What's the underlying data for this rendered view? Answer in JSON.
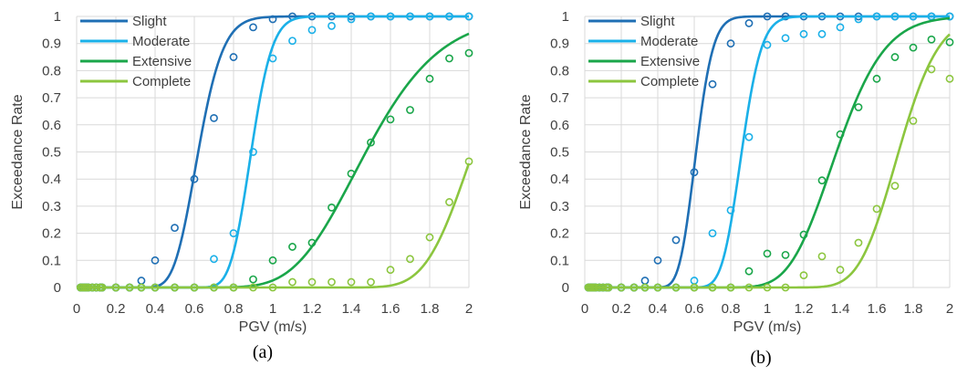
{
  "chart_data": [
    {
      "type": "line",
      "panel_label": "(a)",
      "xlabel": "PGV (m/s)",
      "ylabel": "Exceedance Rate",
      "xlim": [
        0,
        2
      ],
      "ylim": [
        0,
        1
      ],
      "x_ticks": [
        "0",
        "0.2",
        "0.4",
        "0.6",
        "0.8",
        "1",
        "1.2",
        "1.4",
        "1.6",
        "1.8",
        "2"
      ],
      "y_ticks": [
        "0",
        "0.1",
        "0.2",
        "0.3",
        "0.4",
        "0.5",
        "0.6",
        "0.7",
        "0.8",
        "0.9",
        "1"
      ],
      "grid": true,
      "legend_position": "top-left",
      "series": [
        {
          "name": "Slight",
          "color": "#1f6fb4",
          "curve": {
            "median": 0.62,
            "beta": 0.16
          },
          "points": [
            [
              0.02,
              0
            ],
            [
              0.03,
              0
            ],
            [
              0.04,
              0
            ],
            [
              0.05,
              0
            ],
            [
              0.06,
              0
            ],
            [
              0.08,
              0
            ],
            [
              0.1,
              0
            ],
            [
              0.12,
              0
            ],
            [
              0.13,
              0
            ],
            [
              0.2,
              0
            ],
            [
              0.27,
              0
            ],
            [
              0.33,
              0.025
            ],
            [
              0.4,
              0.1
            ],
            [
              0.5,
              0.22
            ],
            [
              0.6,
              0.4
            ],
            [
              0.7,
              0.625
            ],
            [
              0.8,
              0.85
            ],
            [
              0.9,
              0.96
            ],
            [
              1.0,
              0.99
            ],
            [
              1.1,
              1.0
            ],
            [
              1.2,
              1.0
            ],
            [
              1.3,
              1.0
            ],
            [
              1.4,
              1.0
            ],
            [
              1.5,
              1.0
            ],
            [
              1.6,
              1.0
            ],
            [
              1.7,
              1.0
            ],
            [
              1.8,
              1.0
            ],
            [
              1.9,
              1.0
            ],
            [
              2.0,
              1.0
            ]
          ]
        },
        {
          "name": "Moderate",
          "color": "#1ab0e8",
          "curve": {
            "median": 0.89,
            "beta": 0.095
          },
          "points": [
            [
              0.02,
              0
            ],
            [
              0.03,
              0
            ],
            [
              0.04,
              0
            ],
            [
              0.05,
              0
            ],
            [
              0.06,
              0
            ],
            [
              0.08,
              0
            ],
            [
              0.1,
              0
            ],
            [
              0.12,
              0
            ],
            [
              0.13,
              0
            ],
            [
              0.2,
              0
            ],
            [
              0.27,
              0
            ],
            [
              0.33,
              0
            ],
            [
              0.4,
              0
            ],
            [
              0.5,
              0
            ],
            [
              0.6,
              0
            ],
            [
              0.7,
              0.105
            ],
            [
              0.8,
              0.2
            ],
            [
              0.9,
              0.5
            ],
            [
              1.0,
              0.845
            ],
            [
              1.1,
              0.91
            ],
            [
              1.2,
              0.95
            ],
            [
              1.3,
              0.965
            ],
            [
              1.4,
              0.99
            ],
            [
              1.5,
              1.0
            ],
            [
              1.6,
              1.0
            ],
            [
              1.7,
              1.0
            ],
            [
              1.8,
              1.0
            ],
            [
              1.9,
              1.0
            ],
            [
              2.0,
              1.0
            ]
          ]
        },
        {
          "name": "Extensive",
          "color": "#1aa64a",
          "curve": {
            "median": 1.475,
            "beta": 0.2
          },
          "points": [
            [
              0.02,
              0
            ],
            [
              0.03,
              0
            ],
            [
              0.04,
              0
            ],
            [
              0.05,
              0
            ],
            [
              0.06,
              0
            ],
            [
              0.08,
              0
            ],
            [
              0.1,
              0
            ],
            [
              0.12,
              0
            ],
            [
              0.13,
              0
            ],
            [
              0.2,
              0
            ],
            [
              0.27,
              0
            ],
            [
              0.33,
              0
            ],
            [
              0.4,
              0
            ],
            [
              0.5,
              0
            ],
            [
              0.6,
              0
            ],
            [
              0.7,
              0
            ],
            [
              0.8,
              0
            ],
            [
              0.9,
              0.03
            ],
            [
              1.0,
              0.1
            ],
            [
              1.1,
              0.15
            ],
            [
              1.2,
              0.165
            ],
            [
              1.3,
              0.295
            ],
            [
              1.4,
              0.42
            ],
            [
              1.5,
              0.535
            ],
            [
              1.6,
              0.62
            ],
            [
              1.7,
              0.655
            ],
            [
              1.8,
              0.77
            ],
            [
              1.9,
              0.845
            ],
            [
              2.0,
              0.865
            ]
          ]
        },
        {
          "name": "Complete",
          "color": "#8cc63f",
          "curve": {
            "median": 2.02,
            "beta": 0.095
          },
          "points": [
            [
              0.02,
              0
            ],
            [
              0.03,
              0
            ],
            [
              0.04,
              0
            ],
            [
              0.05,
              0
            ],
            [
              0.06,
              0
            ],
            [
              0.08,
              0
            ],
            [
              0.1,
              0
            ],
            [
              0.12,
              0
            ],
            [
              0.13,
              0
            ],
            [
              0.2,
              0
            ],
            [
              0.27,
              0
            ],
            [
              0.33,
              0
            ],
            [
              0.4,
              0
            ],
            [
              0.5,
              0
            ],
            [
              0.6,
              0
            ],
            [
              0.7,
              0
            ],
            [
              0.8,
              0
            ],
            [
              0.9,
              0
            ],
            [
              1.0,
              0
            ],
            [
              1.1,
              0.02
            ],
            [
              1.2,
              0.02
            ],
            [
              1.3,
              0.02
            ],
            [
              1.4,
              0.02
            ],
            [
              1.5,
              0.02
            ],
            [
              1.6,
              0.065
            ],
            [
              1.7,
              0.105
            ],
            [
              1.8,
              0.185
            ],
            [
              1.9,
              0.315
            ],
            [
              2.0,
              0.465
            ]
          ]
        }
      ]
    },
    {
      "type": "line",
      "panel_label": "(b)",
      "xlabel": "PGV (m/s)",
      "ylabel": "Exceedance Rate",
      "xlim": [
        0,
        2
      ],
      "ylim": [
        0,
        1
      ],
      "x_ticks": [
        "0",
        "0.2",
        "0.4",
        "0.6",
        "0.8",
        "1",
        "1.2",
        "1.4",
        "1.6",
        "1.8",
        "2"
      ],
      "y_ticks": [
        "0",
        "0.1",
        "0.2",
        "0.3",
        "0.4",
        "0.5",
        "0.6",
        "0.7",
        "0.8",
        "0.9",
        "1"
      ],
      "grid": true,
      "legend_position": "top-left",
      "series": [
        {
          "name": "Slight",
          "color": "#1f6fb4",
          "curve": {
            "median": 0.61,
            "beta": 0.12
          },
          "points": [
            [
              0.02,
              0
            ],
            [
              0.03,
              0
            ],
            [
              0.04,
              0
            ],
            [
              0.05,
              0
            ],
            [
              0.06,
              0
            ],
            [
              0.08,
              0
            ],
            [
              0.1,
              0
            ],
            [
              0.12,
              0
            ],
            [
              0.13,
              0
            ],
            [
              0.2,
              0
            ],
            [
              0.27,
              0
            ],
            [
              0.33,
              0.025
            ],
            [
              0.4,
              0.1
            ],
            [
              0.5,
              0.175
            ],
            [
              0.6,
              0.425
            ],
            [
              0.7,
              0.75
            ],
            [
              0.8,
              0.9
            ],
            [
              0.9,
              0.975
            ],
            [
              1.0,
              1.0
            ],
            [
              1.1,
              1.0
            ],
            [
              1.2,
              1.0
            ],
            [
              1.3,
              1.0
            ],
            [
              1.4,
              1.0
            ],
            [
              1.5,
              1.0
            ],
            [
              1.6,
              1.0
            ],
            [
              1.7,
              1.0
            ],
            [
              1.8,
              1.0
            ],
            [
              1.9,
              1.0
            ],
            [
              2.0,
              1.0
            ]
          ]
        },
        {
          "name": "Moderate",
          "color": "#1ab0e8",
          "curve": {
            "median": 0.86,
            "beta": 0.1
          },
          "points": [
            [
              0.02,
              0
            ],
            [
              0.03,
              0
            ],
            [
              0.04,
              0
            ],
            [
              0.05,
              0
            ],
            [
              0.06,
              0
            ],
            [
              0.08,
              0
            ],
            [
              0.1,
              0
            ],
            [
              0.12,
              0
            ],
            [
              0.13,
              0
            ],
            [
              0.2,
              0
            ],
            [
              0.27,
              0
            ],
            [
              0.33,
              0
            ],
            [
              0.4,
              0
            ],
            [
              0.5,
              0
            ],
            [
              0.6,
              0.025
            ],
            [
              0.7,
              0.2
            ],
            [
              0.8,
              0.285
            ],
            [
              0.9,
              0.555
            ],
            [
              1.0,
              0.895
            ],
            [
              1.1,
              0.92
            ],
            [
              1.2,
              0.935
            ],
            [
              1.3,
              0.935
            ],
            [
              1.4,
              0.96
            ],
            [
              1.5,
              0.99
            ],
            [
              1.6,
              1.0
            ],
            [
              1.7,
              1.0
            ],
            [
              1.8,
              1.0
            ],
            [
              1.9,
              1.0
            ],
            [
              2.0,
              1.0
            ]
          ]
        },
        {
          "name": "Extensive",
          "color": "#1aa64a",
          "curve": {
            "median": 1.38,
            "beta": 0.15
          },
          "points": [
            [
              0.02,
              0
            ],
            [
              0.03,
              0
            ],
            [
              0.04,
              0
            ],
            [
              0.05,
              0
            ],
            [
              0.06,
              0
            ],
            [
              0.08,
              0
            ],
            [
              0.1,
              0
            ],
            [
              0.12,
              0
            ],
            [
              0.13,
              0
            ],
            [
              0.2,
              0
            ],
            [
              0.27,
              0
            ],
            [
              0.33,
              0
            ],
            [
              0.4,
              0
            ],
            [
              0.5,
              0
            ],
            [
              0.6,
              0
            ],
            [
              0.7,
              0
            ],
            [
              0.8,
              0
            ],
            [
              0.9,
              0.06
            ],
            [
              1.0,
              0.125
            ],
            [
              1.1,
              0.12
            ],
            [
              1.2,
              0.195
            ],
            [
              1.3,
              0.395
            ],
            [
              1.4,
              0.565
            ],
            [
              1.5,
              0.665
            ],
            [
              1.6,
              0.77
            ],
            [
              1.7,
              0.85
            ],
            [
              1.8,
              0.885
            ],
            [
              1.9,
              0.915
            ],
            [
              2.0,
              0.905
            ]
          ]
        },
        {
          "name": "Complete",
          "color": "#8cc63f",
          "curve": {
            "median": 1.72,
            "beta": 0.1
          },
          "points": [
            [
              0.02,
              0
            ],
            [
              0.03,
              0
            ],
            [
              0.04,
              0
            ],
            [
              0.05,
              0
            ],
            [
              0.06,
              0
            ],
            [
              0.08,
              0
            ],
            [
              0.1,
              0
            ],
            [
              0.12,
              0
            ],
            [
              0.13,
              0
            ],
            [
              0.2,
              0
            ],
            [
              0.27,
              0
            ],
            [
              0.33,
              0
            ],
            [
              0.4,
              0
            ],
            [
              0.5,
              0
            ],
            [
              0.6,
              0
            ],
            [
              0.7,
              0
            ],
            [
              0.8,
              0
            ],
            [
              0.9,
              0
            ],
            [
              1.0,
              0
            ],
            [
              1.1,
              0
            ],
            [
              1.2,
              0.045
            ],
            [
              1.3,
              0.115
            ],
            [
              1.4,
              0.065
            ],
            [
              1.5,
              0.165
            ],
            [
              1.6,
              0.29
            ],
            [
              1.7,
              0.375
            ],
            [
              1.8,
              0.615
            ],
            [
              1.9,
              0.805
            ],
            [
              2.0,
              0.77
            ]
          ]
        }
      ]
    }
  ]
}
